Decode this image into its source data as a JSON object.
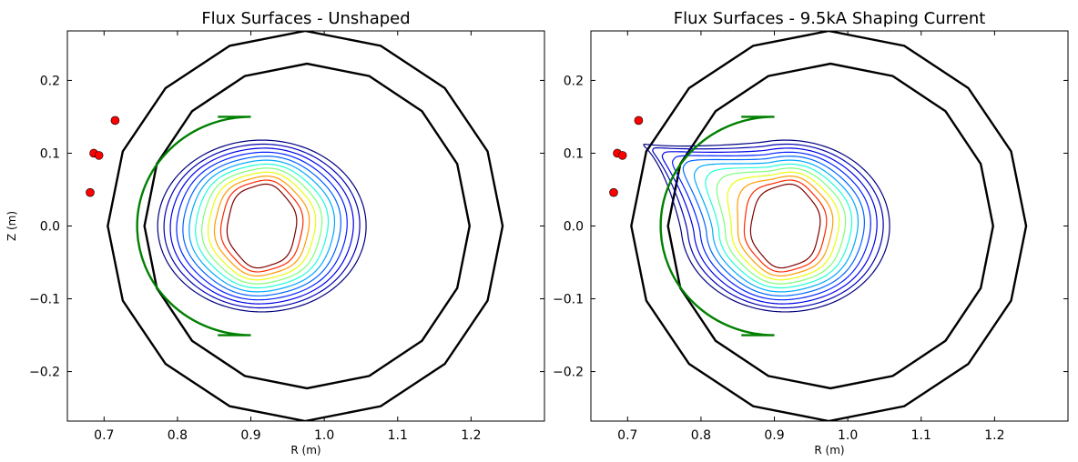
{
  "chart_data": [
    {
      "type": "contour",
      "title": "Flux Surfaces - Unshaped",
      "xlabel": "R (m)",
      "ylabel": "Z (m)",
      "xlim": [
        0.65,
        1.3
      ],
      "ylim": [
        -0.268,
        0.268
      ],
      "xticks": [
        0.7,
        0.8,
        0.9,
        1.0,
        1.1,
        1.2
      ],
      "xtick_labels": [
        "0.7",
        "0.8",
        "0.9",
        "1.0",
        "1.1",
        "1.2"
      ],
      "yticks": [
        -0.2,
        -0.1,
        0.0,
        0.1,
        0.2
      ],
      "ytick_labels": [
        "−0.2",
        "−0.1",
        "0.0",
        "0.1",
        "0.2"
      ],
      "outer_wall": {
        "r_min": 0.705,
        "r_max": 1.243,
        "z_max": 0.268,
        "color": "#000000"
      },
      "inner_wall": {
        "r_min": 0.755,
        "r_max": 1.198,
        "z_max": 0.223,
        "color": "#000000"
      },
      "limiter": {
        "color": "#008000",
        "r_left": 0.757,
        "r_right": 1.067,
        "z_top": 0.15,
        "flat_r_start": 0.855
      },
      "coil_points": [
        [
          0.715,
          0.145
        ],
        [
          0.686,
          0.1
        ],
        [
          0.693,
          0.097
        ],
        [
          0.681,
          0.046
        ]
      ],
      "coil_color": "#ff0000",
      "contours": {
        "center": [
          0.915,
          0.0
        ],
        "count": 11,
        "outer_semi_axes": [
          0.142,
          0.118
        ],
        "inner_semi_axes": [
          0.047,
          0.057
        ],
        "colors": [
          "#00007f",
          "#0000b2",
          "#0000e5",
          "#0020ff",
          "#0064ff",
          "#00a8ff",
          "#1fffd7",
          "#7dff7a",
          "#e8ff0f",
          "#ff9c00",
          "#ff2900",
          "#7f0000"
        ]
      }
    },
    {
      "type": "contour",
      "title": "Flux Surfaces - 9.5kA Shaping Current",
      "xlabel": "R (m)",
      "ylabel": "",
      "xlim": [
        0.65,
        1.3
      ],
      "ylim": [
        -0.268,
        0.268
      ],
      "xticks": [
        0.7,
        0.8,
        0.9,
        1.0,
        1.1,
        1.2
      ],
      "xtick_labels": [
        "0.7",
        "0.8",
        "0.9",
        "1.0",
        "1.1",
        "1.2"
      ],
      "yticks": [
        -0.2,
        -0.1,
        0.0,
        0.1,
        0.2
      ],
      "ytick_labels": [
        "−0.2",
        "−0.1",
        "0.0",
        "0.1",
        "0.2"
      ],
      "outer_wall": {
        "r_min": 0.705,
        "r_max": 1.243,
        "z_max": 0.268,
        "color": "#000000"
      },
      "inner_wall": {
        "r_min": 0.755,
        "r_max": 1.198,
        "z_max": 0.223,
        "color": "#000000"
      },
      "limiter": {
        "color": "#008000",
        "r_left": 0.757,
        "r_right": 1.067,
        "z_top": 0.15,
        "flat_r_start": 0.855
      },
      "coil_points": [
        [
          0.715,
          0.145
        ],
        [
          0.686,
          0.1
        ],
        [
          0.693,
          0.097
        ],
        [
          0.681,
          0.046
        ]
      ],
      "coil_color": "#ff0000",
      "contours": {
        "center": [
          0.915,
          0.0
        ],
        "count": 11,
        "outer_semi_axes": [
          0.142,
          0.118
        ],
        "inner_semi_axes": [
          0.047,
          0.057
        ],
        "colors": [
          "#00007f",
          "#0000b2",
          "#0000e5",
          "#0020ff",
          "#0064ff",
          "#00a8ff",
          "#1fffd7",
          "#7dff7a",
          "#e8ff0f",
          "#ff9c00",
          "#ff2900",
          "#7f0000"
        ],
        "shaped_to_point": [
          0.722,
          0.118
        ]
      }
    }
  ]
}
